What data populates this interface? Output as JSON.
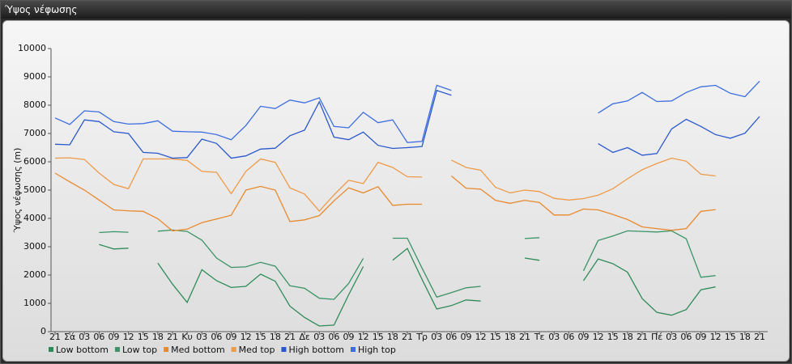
{
  "window_title": "Ύψος νέφωσης",
  "chart_data": {
    "type": "line",
    "y_label": "Ύψος νέφωσης (m)",
    "categories": [
      "21",
      "Σά",
      "03",
      "06",
      "09",
      "12",
      "15",
      "18",
      "21",
      "Κυ",
      "03",
      "06",
      "09",
      "12",
      "15",
      "18",
      "21",
      "Δε",
      "03",
      "06",
      "09",
      "12",
      "15",
      "18",
      "21",
      "Τρ",
      "03",
      "06",
      "09",
      "12",
      "15",
      "18",
      "21",
      "Τε",
      "03",
      "06",
      "09",
      "12",
      "15",
      "18",
      "21",
      "Πέ",
      "03",
      "06",
      "09",
      "12",
      "15",
      "18",
      "21"
    ],
    "ylim": [
      0,
      10000
    ],
    "yticks": [
      0,
      1000,
      2000,
      3000,
      4000,
      5000,
      6000,
      7000,
      8000,
      9000,
      10000
    ],
    "series": [
      {
        "name": "Low bottom",
        "color": "#2e8b57",
        "values": [
          null,
          null,
          null,
          3080,
          2920,
          2950,
          null,
          2420,
          1680,
          1030,
          2190,
          1800,
          1560,
          1600,
          2030,
          1780,
          900,
          500,
          200,
          230,
          1300,
          2300,
          null,
          2520,
          2940,
          1850,
          800,
          920,
          1120,
          1080,
          null,
          null,
          2600,
          2520,
          null,
          null,
          1800,
          2570,
          2400,
          2100,
          1170,
          680,
          580,
          780,
          1480,
          1580,
          null,
          null,
          null
        ]
      },
      {
        "name": "Low top",
        "color": "#3a9466",
        "values": [
          null,
          null,
          null,
          3500,
          3530,
          3510,
          null,
          3550,
          3590,
          3540,
          3230,
          2600,
          2270,
          2290,
          2450,
          2310,
          1620,
          1530,
          1180,
          1140,
          1700,
          2590,
          null,
          3300,
          3300,
          2250,
          1220,
          1380,
          1550,
          1600,
          null,
          null,
          3290,
          3320,
          null,
          null,
          2150,
          3220,
          3380,
          3560,
          3540,
          3520,
          3560,
          3280,
          1920,
          1980,
          null,
          null,
          null
        ]
      },
      {
        "name": "Med bottom",
        "color": "#e8892e",
        "values": [
          5600,
          5290,
          5000,
          4650,
          4300,
          4270,
          4250,
          3990,
          3560,
          3620,
          3850,
          3980,
          4110,
          5000,
          5130,
          5000,
          3890,
          3950,
          4100,
          4620,
          5080,
          4900,
          5120,
          4460,
          4500,
          4500,
          null,
          5500,
          5070,
          5030,
          4640,
          4530,
          4640,
          4560,
          4120,
          4120,
          4330,
          4300,
          4140,
          3960,
          3700,
          3640,
          3580,
          3640,
          4250,
          4310,
          null,
          null,
          null
        ]
      },
      {
        "name": "Med top",
        "color": "#ef9a48",
        "values": [
          6130,
          6140,
          6080,
          5600,
          5200,
          5050,
          6100,
          6100,
          6100,
          6050,
          5660,
          5630,
          4870,
          5660,
          6100,
          5980,
          5080,
          4860,
          4260,
          4830,
          5350,
          5230,
          5980,
          5800,
          5470,
          5460,
          null,
          6060,
          5800,
          5700,
          5100,
          4900,
          5000,
          4950,
          4710,
          4650,
          4700,
          4820,
          5050,
          5400,
          5720,
          5940,
          6130,
          6020,
          5560,
          5500,
          null,
          null,
          null
        ]
      },
      {
        "name": "High bottom",
        "color": "#2a58cc",
        "values": [
          6620,
          6600,
          7480,
          7420,
          7060,
          7000,
          6330,
          6300,
          6130,
          6150,
          6800,
          6650,
          6130,
          6210,
          6450,
          6480,
          6920,
          7120,
          8120,
          6870,
          6780,
          7050,
          6580,
          6470,
          6500,
          6540,
          8520,
          8350,
          null,
          null,
          null,
          null,
          null,
          null,
          null,
          null,
          null,
          6640,
          6330,
          6500,
          6230,
          6290,
          7160,
          7500,
          7250,
          6960,
          6830,
          7010,
          7600
        ]
      },
      {
        "name": "High top",
        "color": "#3d6ee0",
        "values": [
          7550,
          7320,
          7800,
          7760,
          7420,
          7330,
          7350,
          7450,
          7080,
          7060,
          7050,
          6960,
          6780,
          7280,
          7960,
          7880,
          8180,
          8080,
          8260,
          7250,
          7200,
          7750,
          7380,
          7480,
          6680,
          6720,
          8700,
          8520,
          null,
          null,
          null,
          null,
          null,
          null,
          null,
          null,
          null,
          7720,
          8050,
          8150,
          8450,
          8130,
          8150,
          8450,
          8650,
          8700,
          8420,
          8300,
          8850
        ]
      }
    ]
  }
}
